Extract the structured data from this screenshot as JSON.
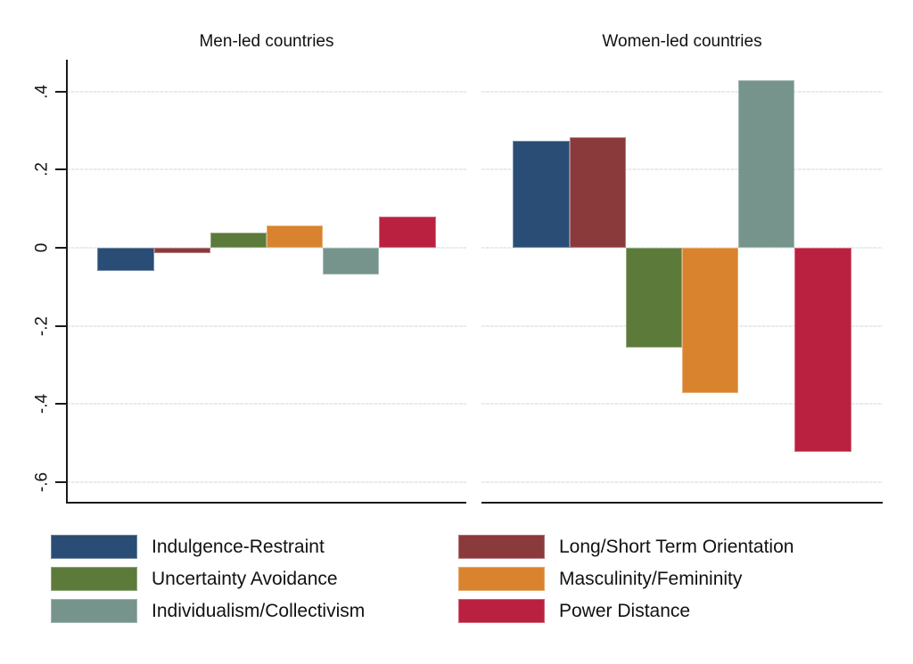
{
  "figure": {
    "background": "#ffffff",
    "axis_color": "#1a1a1a",
    "gridline_color": "#e5edea"
  },
  "chart_data": {
    "type": "bar",
    "panels": [
      {
        "title": "Men-led countries",
        "values": [
          -0.06,
          -0.014,
          0.039,
          0.058,
          -0.068,
          0.079
        ]
      },
      {
        "title": "Women-led countries",
        "values": [
          0.275,
          0.284,
          -0.256,
          -0.372,
          0.43,
          -0.522
        ]
      }
    ],
    "series": [
      {
        "name": "Indulgence-Restraint",
        "color": "#294d75"
      },
      {
        "name": "Long/Short Term Orientation",
        "color": "#8b3a3c"
      },
      {
        "name": "Uncertainty Avoidance",
        "color": "#5c7b3b"
      },
      {
        "name": "Masculinity/Femininity",
        "color": "#d9832e"
      },
      {
        "name": "Individualism/Collectivism",
        "color": "#76948b"
      },
      {
        "name": "Power Distance",
        "color": "#ba2140"
      }
    ],
    "yticks": [
      {
        "label": ".4",
        "value": 0.4
      },
      {
        "label": ".2",
        "value": 0.2
      },
      {
        "label": "0",
        "value": 0.0
      },
      {
        "label": "-.2",
        "value": -0.2
      },
      {
        "label": "-.4",
        "value": -0.4
      },
      {
        "label": "-.6",
        "value": -0.6
      }
    ],
    "ylim": [
      -0.655,
      0.482
    ],
    "grid": true,
    "legend_position": "bottom",
    "legend_columns": [
      [
        0,
        2,
        4
      ],
      [
        1,
        3,
        5
      ]
    ]
  }
}
